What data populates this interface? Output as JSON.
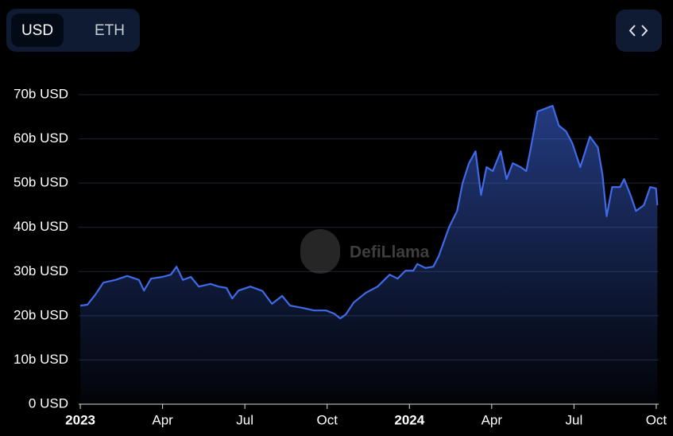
{
  "toggle": [
    "USD",
    "ETH"
  ],
  "watermark": "DefiLlama",
  "chart_data": {
    "type": "area",
    "color": "#3f6ae8",
    "grid": true,
    "xlim": [
      -0.06,
      21.06
    ],
    "xticks": [
      {
        "value": 0,
        "label": "2023"
      },
      {
        "value": 3,
        "label": "Apr"
      },
      {
        "value": 6,
        "label": "Jul"
      },
      {
        "value": 9,
        "label": "Oct"
      },
      {
        "value": 12,
        "label": "2024"
      },
      {
        "value": 15,
        "label": "Apr"
      },
      {
        "value": 18,
        "label": "Jul"
      },
      {
        "value": 21,
        "label": "Oct"
      }
    ],
    "ylim": [
      0,
      70
    ],
    "yticks": [
      {
        "value": 0,
        "label": "0 USD"
      },
      {
        "value": 10,
        "label": "10b USD"
      },
      {
        "value": 20,
        "label": "20b USD"
      },
      {
        "value": 30,
        "label": "30b USD"
      },
      {
        "value": 40,
        "label": "40b USD"
      },
      {
        "value": 50,
        "label": "50b USD"
      },
      {
        "value": 60,
        "label": "60b USD"
      },
      {
        "value": 70,
        "label": "70b USD"
      }
    ],
    "x": [
      0,
      0.26,
      0.55,
      0.84,
      1.28,
      1.71,
      2.14,
      2.32,
      2.58,
      3.0,
      3.3,
      3.51,
      3.74,
      4.03,
      4.32,
      4.75,
      5.04,
      5.33,
      5.54,
      5.77,
      6.2,
      6.64,
      6.99,
      7.36,
      7.65,
      8.09,
      8.52,
      8.96,
      9.25,
      9.48,
      9.68,
      9.97,
      10.41,
      10.84,
      11.28,
      11.57,
      11.86,
      12.14,
      12.29,
      12.58,
      12.87,
      13.07,
      13.45,
      13.74,
      13.94,
      14.17,
      14.41,
      14.61,
      14.81,
      15.04,
      15.33,
      15.54,
      15.77,
      16.06,
      16.26,
      16.43,
      16.67,
      16.93,
      17.22,
      17.45,
      17.71,
      17.94,
      18.23,
      18.58,
      18.87,
      19.04,
      19.19,
      19.39,
      19.68,
      19.83,
      20.06,
      20.26,
      20.55,
      20.78,
      20.99,
      21.04
    ],
    "values": [
      22.3,
      22.5,
      24.8,
      27.5,
      28.1,
      29.0,
      28.1,
      25.7,
      28.4,
      28.8,
      29.3,
      31.1,
      28.1,
      28.8,
      26.6,
      27.2,
      26.6,
      26.3,
      23.9,
      25.7,
      26.6,
      25.6,
      22.7,
      24.5,
      22.3,
      21.8,
      21.2,
      21.2,
      20.5,
      19.4,
      20.3,
      23.0,
      25.2,
      26.6,
      29.3,
      28.4,
      30.2,
      30.2,
      31.7,
      30.8,
      31.1,
      33.5,
      40.1,
      43.7,
      50.0,
      54.5,
      57.2,
      47.3,
      53.6,
      52.7,
      57.2,
      50.9,
      54.5,
      53.6,
      52.7,
      58.1,
      66.2,
      66.8,
      67.5,
      63.0,
      61.7,
      59.0,
      53.6,
      60.5,
      58.1,
      51.8,
      42.5,
      49.1,
      49.1,
      50.9,
      47.3,
      43.7,
      45.0,
      49.1,
      48.8,
      45.0
    ]
  }
}
